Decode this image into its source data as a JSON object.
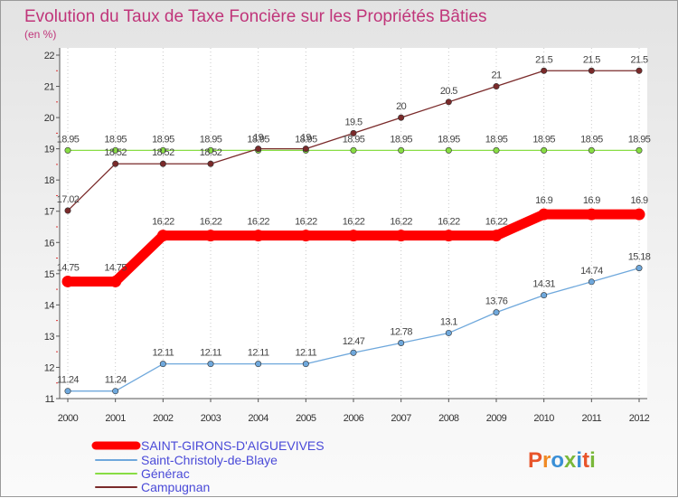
{
  "chart_data": {
    "type": "line",
    "title": "Evolution du Taux de Taxe Foncière sur les Propriétés Bâties",
    "subtitle": "(en %)",
    "x": [
      "2000",
      "2001",
      "2002",
      "2003",
      "2004",
      "2005",
      "2006",
      "2007",
      "2008",
      "2009",
      "2010",
      "2011",
      "2012"
    ],
    "ylim": [
      11,
      22
    ],
    "yticks": [
      11,
      12,
      13,
      14,
      15,
      16,
      17,
      18,
      19,
      20,
      21,
      22
    ],
    "series": [
      {
        "name": "SAINT-GIRONS-D'AIGUEVIVES",
        "color": "#ff0000",
        "values": [
          14.75,
          14.75,
          16.22,
          16.22,
          16.22,
          16.22,
          16.22,
          16.22,
          16.22,
          16.22,
          16.9,
          16.9,
          16.9
        ],
        "labels": [
          "14.75",
          "14.75",
          "16.22",
          "16.22",
          "16.22",
          "16.22",
          "16.22",
          "16.22",
          "16.22",
          "16.22",
          "16.9",
          "16.9",
          "16.9"
        ]
      },
      {
        "name": "Saint-Christoly-de-Blaye",
        "color": "#6fa8dc",
        "values": [
          11.24,
          11.24,
          12.11,
          12.11,
          12.11,
          12.11,
          12.47,
          12.78,
          13.1,
          13.76,
          14.31,
          14.74,
          15.18
        ],
        "labels": [
          "11.24",
          "11.24",
          "12.11",
          "12.11",
          "12.11",
          "12.11",
          "12.47",
          "12.78",
          "13.1",
          "13.76",
          "14.31",
          "14.74",
          "15.18"
        ]
      },
      {
        "name": "Générac",
        "color": "#88dd44",
        "values": [
          18.95,
          18.95,
          18.95,
          18.95,
          18.95,
          18.95,
          18.95,
          18.95,
          18.95,
          18.95,
          18.95,
          18.95,
          18.95
        ],
        "labels": [
          "18.95",
          "18.95",
          "18.95",
          "18.95",
          "18.95",
          "18.95",
          "18.95",
          "18.95",
          "18.95",
          "18.95",
          "18.95",
          "18.95",
          "18.95"
        ]
      },
      {
        "name": "Campugnan",
        "color": "#7a2a2a",
        "values": [
          17.02,
          18.52,
          18.52,
          18.52,
          19,
          19,
          19.5,
          20,
          20.5,
          21,
          21.5,
          21.5,
          21.5
        ],
        "labels": [
          "17.02",
          "18.52",
          "18.52",
          "18.52",
          "19",
          "19",
          "19.5",
          "20",
          "20.5",
          "21",
          "21.5",
          "21.5",
          "21.5"
        ]
      }
    ]
  },
  "logo": {
    "text": "Proxiti",
    "letter_colors": [
      "#e8542a",
      "#f08a24",
      "#3a8fd6",
      "#7ab83a",
      "#3a8fd6",
      "#e8542a",
      "#7ab83a"
    ]
  }
}
